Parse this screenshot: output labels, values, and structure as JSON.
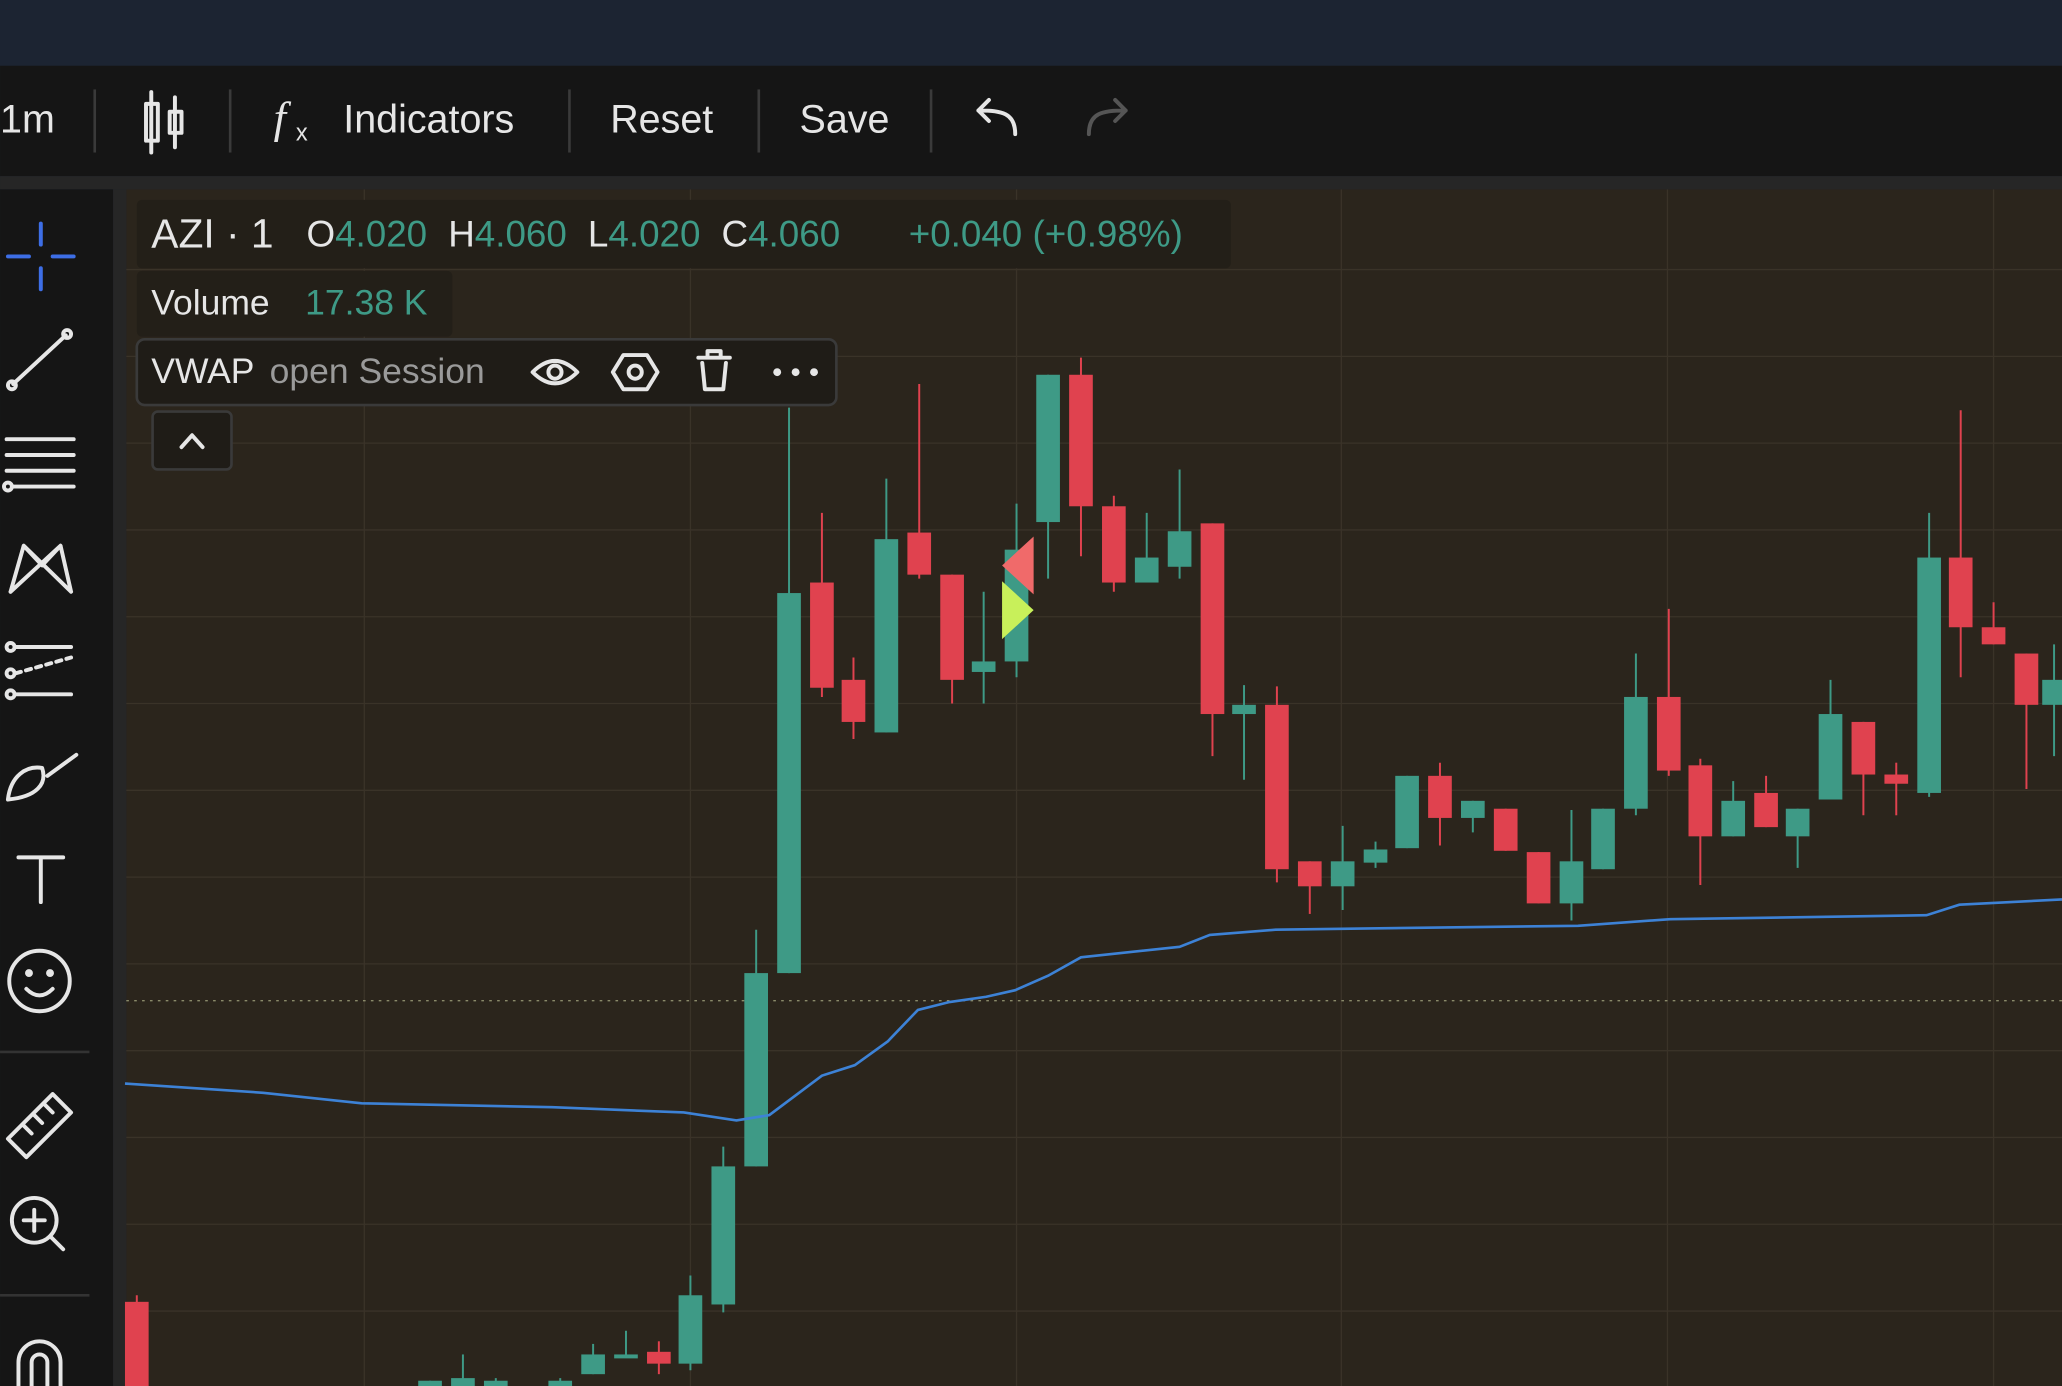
{
  "toolbar": {
    "interval": "1m",
    "indicators": "Indicators",
    "reset": "Reset",
    "save": "Save"
  },
  "legend": {
    "symbol": "AZI · 1",
    "ohlc": [
      {
        "label": "O",
        "value": "4.020"
      },
      {
        "label": "H",
        "value": "4.060"
      },
      {
        "label": "L",
        "value": "4.020"
      },
      {
        "label": "C",
        "value": "4.060"
      }
    ],
    "change": "+0.040 (+0.98%)",
    "volume": {
      "label": "Volume",
      "value": "17.38 K"
    },
    "indicator": {
      "name": "VWAP",
      "params": "open Session"
    }
  }
}
